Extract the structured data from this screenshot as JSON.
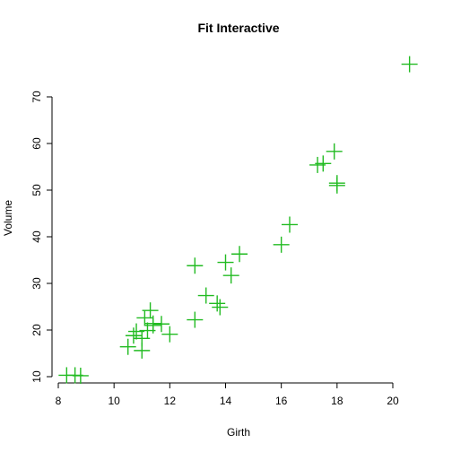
{
  "chart_data": {
    "type": "scatter",
    "title": "Fit Interactive",
    "xlabel": "Girth",
    "ylabel": "Volume",
    "xlim": [
      8,
      21
    ],
    "ylim": [
      10,
      77
    ],
    "x_ticks": [
      8,
      10,
      12,
      14,
      16,
      18,
      20
    ],
    "y_ticks": [
      10,
      20,
      30,
      40,
      50,
      60,
      70
    ],
    "x_tick_labels": [
      "8",
      "10",
      "12",
      "14",
      "16",
      "18",
      "20"
    ],
    "y_tick_labels": [
      "10",
      "20",
      "30",
      "40",
      "50",
      "60",
      "70"
    ],
    "grid": false,
    "point_color": "#22bb22",
    "marker": "plus",
    "points": [
      {
        "x": 8.3,
        "y": 10.3
      },
      {
        "x": 8.6,
        "y": 10.3
      },
      {
        "x": 8.8,
        "y": 10.2
      },
      {
        "x": 10.5,
        "y": 16.4
      },
      {
        "x": 10.7,
        "y": 18.8
      },
      {
        "x": 10.8,
        "y": 19.7
      },
      {
        "x": 11.0,
        "y": 15.6
      },
      {
        "x": 11.0,
        "y": 18.2
      },
      {
        "x": 11.1,
        "y": 22.6
      },
      {
        "x": 11.2,
        "y": 19.9
      },
      {
        "x": 11.3,
        "y": 24.2
      },
      {
        "x": 11.4,
        "y": 21.0
      },
      {
        "x": 11.4,
        "y": 21.4
      },
      {
        "x": 11.7,
        "y": 21.3
      },
      {
        "x": 12.0,
        "y": 19.1
      },
      {
        "x": 12.9,
        "y": 22.2
      },
      {
        "x": 12.9,
        "y": 33.8
      },
      {
        "x": 13.3,
        "y": 27.4
      },
      {
        "x": 13.7,
        "y": 25.7
      },
      {
        "x": 13.8,
        "y": 24.9
      },
      {
        "x": 14.0,
        "y": 34.5
      },
      {
        "x": 14.2,
        "y": 31.7
      },
      {
        "x": 14.5,
        "y": 36.3
      },
      {
        "x": 16.0,
        "y": 38.3
      },
      {
        "x": 16.3,
        "y": 42.6
      },
      {
        "x": 17.3,
        "y": 55.4
      },
      {
        "x": 17.5,
        "y": 55.7
      },
      {
        "x": 17.9,
        "y": 58.3
      },
      {
        "x": 18.0,
        "y": 51.5
      },
      {
        "x": 18.0,
        "y": 51.0
      },
      {
        "x": 20.6,
        "y": 77.0
      }
    ]
  }
}
